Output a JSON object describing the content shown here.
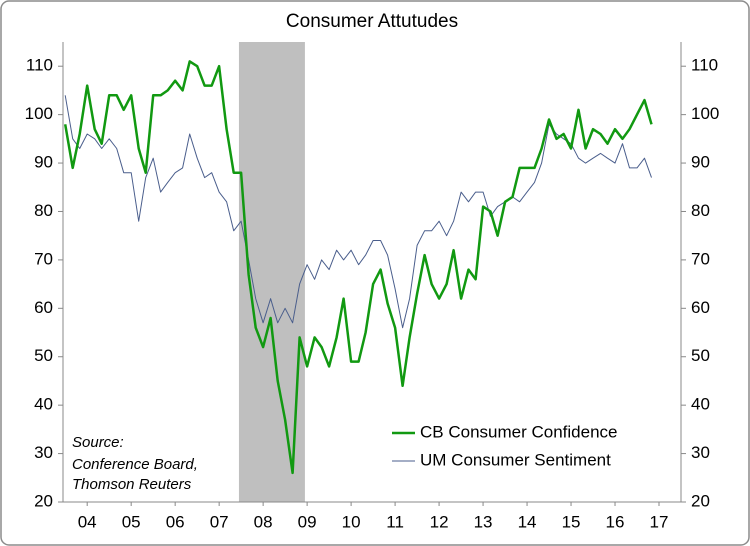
{
  "chart_data": {
    "type": "line",
    "title": "Consumer Attutudes",
    "annotation": [
      "Source:",
      "Conference Board,",
      "Thomson Reuters"
    ],
    "x": [
      2004.0,
      2004.17,
      2004.33,
      2004.5,
      2004.67,
      2004.83,
      2005.0,
      2005.17,
      2005.33,
      2005.5,
      2005.67,
      2005.83,
      2006.0,
      2006.17,
      2006.33,
      2006.5,
      2006.67,
      2006.83,
      2007.0,
      2007.17,
      2007.33,
      2007.5,
      2007.67,
      2007.83,
      2008.0,
      2008.17,
      2008.33,
      2008.5,
      2008.67,
      2008.83,
      2009.0,
      2009.17,
      2009.33,
      2009.5,
      2009.67,
      2009.83,
      2010.0,
      2010.17,
      2010.33,
      2010.5,
      2010.67,
      2010.83,
      2011.0,
      2011.17,
      2011.33,
      2011.5,
      2011.67,
      2011.83,
      2012.0,
      2012.17,
      2012.33,
      2012.5,
      2012.67,
      2012.83,
      2013.0,
      2013.17,
      2013.33,
      2013.5,
      2013.67,
      2013.83,
      2014.0,
      2014.17,
      2014.33,
      2014.5,
      2014.67,
      2014.83,
      2015.0,
      2015.17,
      2015.33,
      2015.5,
      2015.67,
      2015.83,
      2016.0,
      2016.17,
      2016.33,
      2016.5,
      2016.67,
      2016.83,
      2017.0,
      2017.17,
      2017.33
    ],
    "series": [
      {
        "name": "CB Consumer Confidence",
        "color": "#119911",
        "width": 2.5,
        "values": [
          98,
          89,
          96,
          106,
          97,
          94,
          104,
          104,
          101,
          104,
          93,
          88,
          104,
          104,
          105,
          107,
          105,
          111,
          110,
          106,
          106,
          110,
          97,
          88,
          88,
          67,
          56,
          52,
          58,
          45,
          37,
          26,
          54,
          48,
          54,
          52,
          48,
          54,
          62,
          49,
          49,
          55,
          65,
          68,
          61,
          56,
          44,
          54,
          63,
          71,
          65,
          62,
          65,
          72,
          62,
          68,
          66,
          81,
          80,
          75,
          82,
          83,
          89,
          89,
          89,
          93,
          99,
          95,
          96,
          93,
          101,
          93,
          97,
          96,
          94,
          97,
          95,
          97,
          100,
          103,
          98
        ]
      },
      {
        "name": "UM Consumer Sentiment",
        "color": "#4a5e8c",
        "width": 1,
        "axis": "y2",
        "values": [
          104,
          95,
          93,
          96,
          95,
          93,
          95,
          93,
          88,
          88,
          78,
          87,
          91,
          84,
          86,
          88,
          89,
          96,
          91,
          87,
          88,
          84,
          82,
          76,
          78,
          70,
          62,
          57,
          62,
          57,
          60,
          57,
          65,
          69,
          66,
          70,
          68,
          72,
          70,
          72,
          69,
          71,
          74,
          74,
          71,
          64,
          56,
          62,
          73,
          76,
          76,
          78,
          75,
          78,
          84,
          82,
          84,
          84,
          79,
          81,
          82,
          83,
          82,
          84,
          86,
          90,
          98,
          96,
          95,
          94,
          91,
          90,
          91,
          92,
          91,
          90,
          94,
          89,
          89,
          91,
          87
        ]
      }
    ],
    "shaded": [
      2007.95,
      2009.45
    ],
    "shade_color": "#bfbfbf",
    "xlim": [
      2003.95,
      2018
    ],
    "xticks": [
      {
        "value": 2004.5,
        "label": "04"
      },
      {
        "value": 2005.5,
        "label": "05"
      },
      {
        "value": 2006.5,
        "label": "06"
      },
      {
        "value": 2007.5,
        "label": "07"
      },
      {
        "value": 2008.5,
        "label": "08"
      },
      {
        "value": 2009.5,
        "label": "09"
      },
      {
        "value": 2010.5,
        "label": "10"
      },
      {
        "value": 2011.5,
        "label": "11"
      },
      {
        "value": 2012.5,
        "label": "12"
      },
      {
        "value": 2013.5,
        "label": "13"
      },
      {
        "value": 2014.5,
        "label": "14"
      },
      {
        "value": 2015.5,
        "label": "15"
      },
      {
        "value": 2016.5,
        "label": "16"
      },
      {
        "value": 2017.5,
        "label": "17"
      }
    ],
    "ylim": [
      20,
      115
    ],
    "yticks": [
      20,
      30,
      40,
      50,
      60,
      70,
      80,
      90,
      100,
      110
    ],
    "y2lim": [
      20,
      115
    ],
    "y2ticks": [
      20,
      30,
      40,
      50,
      60,
      70,
      80,
      90,
      100,
      110
    ],
    "legend": "lower right"
  }
}
